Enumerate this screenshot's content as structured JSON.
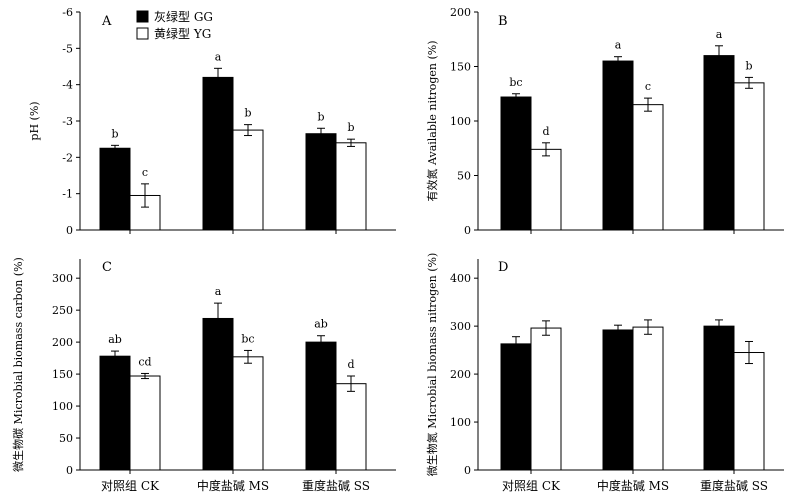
{
  "legend": [
    {
      "label": "灰绿型 GG",
      "color": "#000000"
    },
    {
      "label": "黄绿型 YG",
      "color": "#ffffff"
    }
  ],
  "chart_data": [
    {
      "panel": "A",
      "type": "bar",
      "ylabel": "pH (%)",
      "ylim": [
        0,
        -6
      ],
      "yticks": [
        0,
        -1,
        -2,
        -3,
        -4,
        -5,
        -6
      ],
      "categories": [
        "对照组 CK",
        "中度盐碱 MS",
        "重度盐碱 SS"
      ],
      "show_category_labels": false,
      "series": [
        {
          "name": "灰绿型 GG",
          "color": "#000000",
          "values": [
            -2.25,
            -4.2,
            -2.65
          ],
          "errors": [
            0.08,
            0.25,
            0.15
          ],
          "sig": [
            "b",
            "a",
            "b"
          ]
        },
        {
          "name": "黄绿型 YG",
          "color": "#ffffff",
          "values": [
            -0.95,
            -2.75,
            -2.4
          ],
          "errors": [
            0.32,
            0.15,
            0.1
          ],
          "sig": [
            "c",
            "b",
            "b"
          ]
        }
      ]
    },
    {
      "panel": "B",
      "type": "bar",
      "ylabel": "有效氮 Available nitrogen (%)",
      "ylim": [
        0,
        200
      ],
      "yticks": [
        0,
        50,
        100,
        150,
        200
      ],
      "categories": [
        "对照组 CK",
        "中度盐碱 MS",
        "重度盐碱 SS"
      ],
      "show_category_labels": false,
      "series": [
        {
          "name": "灰绿型 GG",
          "color": "#000000",
          "values": [
            122,
            155,
            160
          ],
          "errors": [
            3,
            4,
            9
          ],
          "sig": [
            "bc",
            "a",
            "a"
          ]
        },
        {
          "name": "黄绿型 YG",
          "color": "#ffffff",
          "values": [
            74,
            115,
            135
          ],
          "errors": [
            6,
            6,
            5
          ],
          "sig": [
            "d",
            "c",
            "b"
          ]
        }
      ]
    },
    {
      "panel": "C",
      "type": "bar",
      "ylabel": "微生物碳 Microbial biomass carbon (%)",
      "ylim": [
        0,
        330
      ],
      "yticks": [
        0,
        50,
        100,
        150,
        200,
        250,
        300
      ],
      "categories": [
        "对照组 CK",
        "中度盐碱 MS",
        "重度盐碱 SS"
      ],
      "show_category_labels": true,
      "series": [
        {
          "name": "灰绿型 GG",
          "color": "#000000",
          "values": [
            178,
            237,
            200
          ],
          "errors": [
            8,
            24,
            10
          ],
          "sig": [
            "ab",
            "a",
            "ab"
          ]
        },
        {
          "name": "黄绿型 YG",
          "color": "#ffffff",
          "values": [
            147,
            177,
            135
          ],
          "errors": [
            4,
            10,
            12
          ],
          "sig": [
            "cd",
            "bc",
            "d"
          ]
        }
      ]
    },
    {
      "panel": "D",
      "type": "bar",
      "ylabel": "微生物氮 Microbial biomass nitrogen (%)",
      "ylim": [
        0,
        440
      ],
      "yticks": [
        0,
        100,
        200,
        300,
        400
      ],
      "categories": [
        "对照组 CK",
        "中度盐碱 MS",
        "重度盐碱 SS"
      ],
      "show_category_labels": true,
      "series": [
        {
          "name": "灰绿型 GG",
          "color": "#000000",
          "values": [
            263,
            292,
            300
          ],
          "errors": [
            15,
            10,
            13
          ],
          "sig": [
            "",
            "",
            ""
          ]
        },
        {
          "name": "黄绿型 YG",
          "color": "#ffffff",
          "values": [
            296,
            298,
            245
          ],
          "errors": [
            15,
            15,
            23
          ],
          "sig": [
            "",
            "",
            ""
          ]
        }
      ]
    }
  ]
}
